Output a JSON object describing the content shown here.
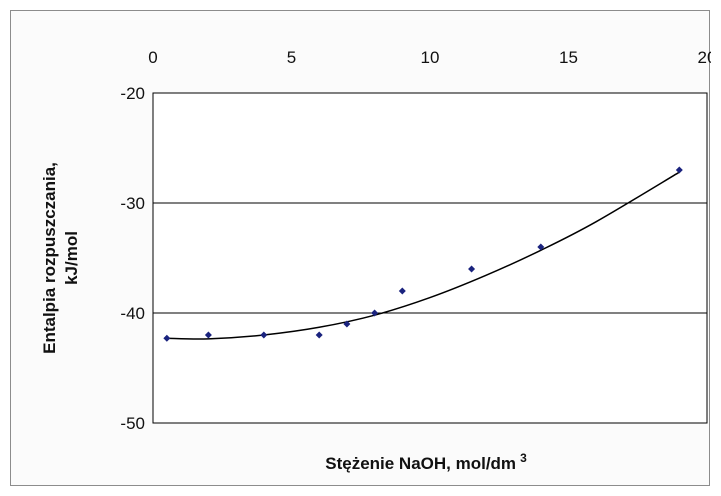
{
  "chart_data": {
    "type": "scatter",
    "title": "",
    "xlabel": "Stężenie NaOH, mol/dm",
    "xlabel_superscript": "3",
    "ylabel_line1": "Entalpia rozpuszczania,",
    "ylabel_line2": "kJ/mol",
    "xlim": [
      0,
      20
    ],
    "ylim": [
      -50,
      -20
    ],
    "x_axis_position": "top",
    "x_ticks": [
      0,
      5,
      10,
      15,
      20
    ],
    "y_ticks": [
      -20,
      -30,
      -40,
      -50
    ],
    "horizontal_grid": true,
    "legend": "none",
    "colors": {
      "points": "#1a237e",
      "trendline": "#000000",
      "grid": "#000000"
    },
    "series": [
      {
        "points": [
          {
            "x": 0.5,
            "y": -42.3
          },
          {
            "x": 2,
            "y": -42.0
          },
          {
            "x": 4,
            "y": -42.0
          },
          {
            "x": 6,
            "y": -42.0
          },
          {
            "x": 7,
            "y": -41.0
          },
          {
            "x": 8,
            "y": -40.0
          },
          {
            "x": 9,
            "y": -38.0
          },
          {
            "x": 11.5,
            "y": -36.0
          },
          {
            "x": 14,
            "y": -34.0
          },
          {
            "x": 19,
            "y": -27.0
          }
        ]
      }
    ],
    "trendline": {
      "kind": "polynomial-2",
      "points": [
        {
          "x": 0.5,
          "y": -42.3
        },
        {
          "x": 2,
          "y": -42.35
        },
        {
          "x": 4,
          "y": -42.0
        },
        {
          "x": 6,
          "y": -41.3
        },
        {
          "x": 8,
          "y": -40.2
        },
        {
          "x": 10,
          "y": -38.6
        },
        {
          "x": 12,
          "y": -36.6
        },
        {
          "x": 14,
          "y": -34.3
        },
        {
          "x": 16,
          "y": -31.7
        },
        {
          "x": 19,
          "y": -27.2
        }
      ]
    }
  }
}
